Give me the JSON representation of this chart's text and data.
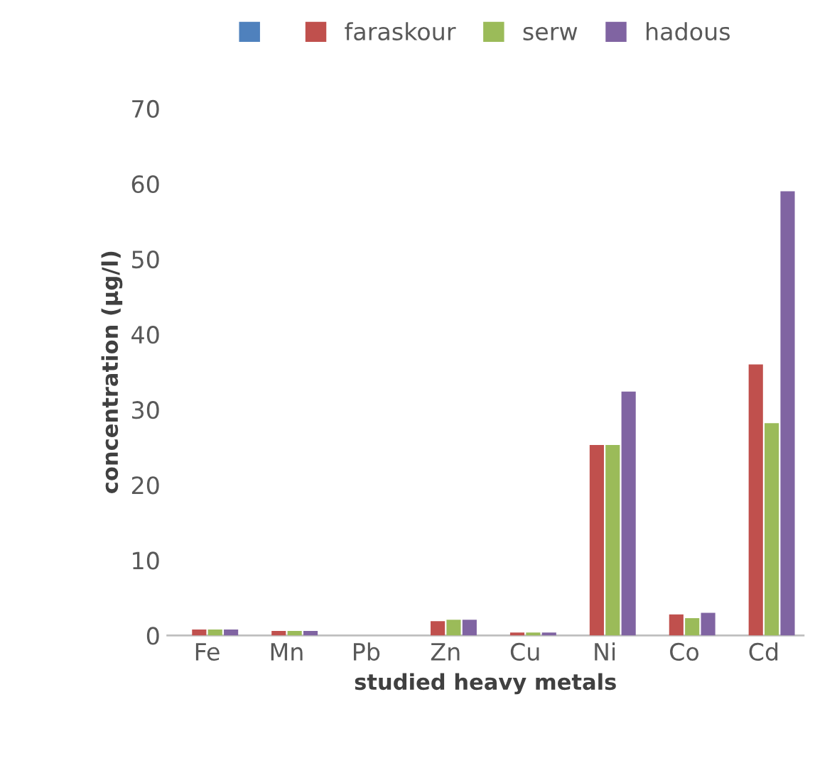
{
  "chart_data": {
    "type": "bar",
    "xlabel": "studied heavy metals",
    "ylabel": "concentration (µg/l)",
    "categories": [
      "Fe",
      "Mn",
      "Pb",
      "Zn",
      "Cu",
      "Ni",
      "Co",
      "Cd"
    ],
    "series": [
      {
        "color": "#4f81bd",
        "values": [
          0,
          0,
          0,
          0,
          0,
          0,
          0,
          0
        ]
      },
      {
        "name": "faraskour",
        "color": "#c0504d",
        "values": [
          0.8,
          0.6,
          0,
          1.9,
          0.4,
          25.3,
          2.8,
          36.0
        ]
      },
      {
        "name": "serw",
        "color": "#9bbb59",
        "values": [
          0.8,
          0.6,
          0,
          2.1,
          0.4,
          25.3,
          2.3,
          28.2
        ]
      },
      {
        "name": "hadous",
        "color": "#8064a2",
        "values": [
          0.8,
          0.6,
          0,
          2.1,
          0.4,
          32.4,
          3.0,
          59.0
        ]
      }
    ],
    "ylim": [
      0,
      70
    ],
    "yticks": [
      0,
      10,
      20,
      30,
      40,
      50,
      60,
      70
    ],
    "grid": false,
    "legend": "top"
  }
}
